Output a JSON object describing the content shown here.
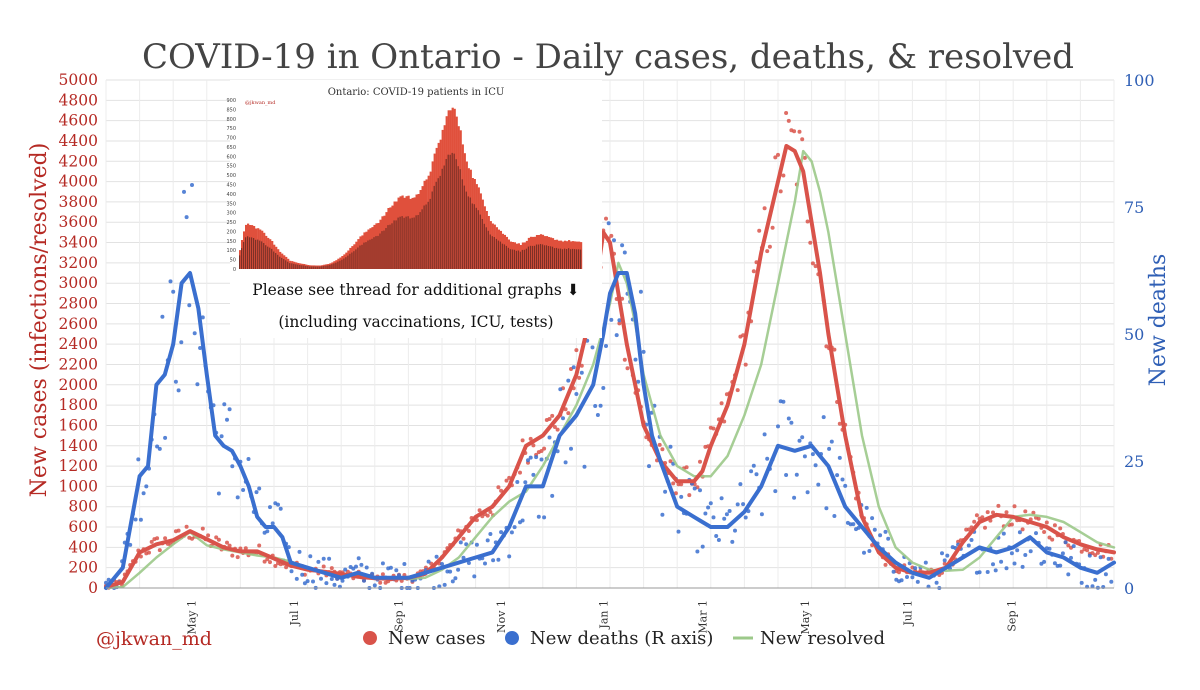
{
  "chart_data": {
    "type": "line",
    "title": "COVID-19 in Ontario - Daily cases, deaths, & resolved",
    "ylabel_left": "New cases (infections/resolved)",
    "ylabel_right": "New deaths",
    "ylim_left": [
      0,
      5000
    ],
    "ylim_right": [
      0,
      100
    ],
    "yticks_left": [
      0,
      200,
      400,
      600,
      800,
      1000,
      1200,
      1400,
      1600,
      1800,
      2000,
      2200,
      2400,
      2600,
      2800,
      3000,
      3200,
      3400,
      3600,
      3800,
      4000,
      4200,
      4400,
      4600,
      4800,
      5000
    ],
    "yticks_right": [
      0,
      25,
      50,
      75,
      100
    ],
    "xrange_days": [
      0,
      600
    ],
    "xticks": [
      {
        "label": "May 1",
        "day": 51
      },
      {
        "label": "Jul 1",
        "day": 112
      },
      {
        "label": "Sep 1",
        "day": 174
      },
      {
        "label": "Nov 1",
        "day": 235
      },
      {
        "label": "Jan 1",
        "day": 296
      },
      {
        "label": "Mar 1",
        "day": 355
      },
      {
        "label": "May 1",
        "day": 416
      },
      {
        "label": "Jul 1",
        "day": 477
      },
      {
        "label": "Sep 1",
        "day": 539
      }
    ],
    "grid": true,
    "legend_position": "bottom",
    "series": [
      {
        "name": "New cases",
        "axis": "left",
        "color": "#d9534a",
        "x": [
          0,
          10,
          20,
          30,
          40,
          50,
          60,
          70,
          80,
          90,
          100,
          110,
          120,
          130,
          140,
          150,
          160,
          170,
          180,
          190,
          200,
          210,
          220,
          230,
          240,
          250,
          260,
          270,
          280,
          290,
          296,
          300,
          305,
          310,
          315,
          320,
          330,
          340,
          350,
          355,
          360,
          370,
          380,
          390,
          400,
          405,
          410,
          415,
          420,
          425,
          430,
          440,
          450,
          460,
          470,
          480,
          490,
          500,
          510,
          520,
          530,
          540,
          550,
          560,
          570,
          580,
          590,
          600
        ],
        "values": [
          10,
          60,
          350,
          430,
          470,
          560,
          480,
          400,
          360,
          360,
          290,
          220,
          180,
          160,
          140,
          110,
          95,
          90,
          100,
          140,
          300,
          500,
          700,
          800,
          1000,
          1400,
          1500,
          1700,
          2100,
          2800,
          3500,
          3400,
          2900,
          2400,
          2000,
          1600,
          1250,
          1050,
          1050,
          1150,
          1400,
          1800,
          2400,
          3300,
          4000,
          4350,
          4300,
          4100,
          3600,
          3100,
          2500,
          1500,
          700,
          350,
          200,
          150,
          150,
          200,
          450,
          650,
          720,
          700,
          650,
          600,
          500,
          430,
          380,
          350
        ]
      },
      {
        "name": "New deaths (R axis)",
        "axis": "right",
        "color": "#3a6fcf",
        "x": [
          0,
          10,
          20,
          25,
          30,
          35,
          40,
          45,
          50,
          55,
          60,
          65,
          70,
          75,
          80,
          85,
          90,
          95,
          100,
          105,
          110,
          120,
          130,
          140,
          150,
          160,
          170,
          180,
          190,
          200,
          210,
          220,
          230,
          240,
          250,
          260,
          270,
          280,
          290,
          296,
          300,
          305,
          310,
          315,
          320,
          325,
          330,
          340,
          350,
          355,
          360,
          370,
          380,
          390,
          400,
          410,
          420,
          430,
          440,
          450,
          460,
          470,
          480,
          490,
          500,
          510,
          520,
          530,
          540,
          550,
          560,
          570,
          580,
          590,
          600
        ],
        "values": [
          0,
          4,
          22,
          24,
          40,
          42,
          48,
          60,
          62,
          55,
          42,
          30,
          28,
          27,
          24,
          20,
          14,
          12,
          12,
          10,
          5,
          4,
          3,
          2,
          3,
          2,
          2,
          2,
          3,
          4,
          5,
          6,
          7,
          12,
          20,
          20,
          30,
          34,
          40,
          50,
          58,
          62,
          62,
          54,
          40,
          30,
          25,
          16,
          14,
          13,
          12,
          12,
          15,
          20,
          28,
          27,
          28,
          24,
          16,
          12,
          8,
          5,
          3,
          2,
          4,
          6,
          8,
          7,
          8,
          10,
          7,
          6,
          4,
          3,
          5
        ]
      },
      {
        "name": "New resolved",
        "axis": "left",
        "color": "#9cc98a",
        "x": [
          0,
          10,
          20,
          30,
          40,
          50,
          60,
          70,
          80,
          90,
          100,
          110,
          120,
          130,
          140,
          150,
          160,
          170,
          180,
          190,
          200,
          210,
          220,
          230,
          240,
          250,
          260,
          270,
          280,
          290,
          300,
          305,
          310,
          315,
          320,
          330,
          340,
          350,
          360,
          370,
          380,
          390,
          400,
          410,
          415,
          420,
          425,
          430,
          440,
          450,
          460,
          470,
          480,
          490,
          500,
          510,
          520,
          530,
          540,
          550,
          560,
          570,
          580,
          590,
          600
        ],
        "values": [
          0,
          10,
          150,
          300,
          430,
          550,
          420,
          380,
          350,
          320,
          300,
          260,
          200,
          160,
          130,
          120,
          100,
          90,
          90,
          100,
          180,
          300,
          500,
          700,
          850,
          950,
          1200,
          1500,
          1800,
          2200,
          2800,
          3200,
          3000,
          2600,
          2100,
          1500,
          1200,
          1100,
          1100,
          1300,
          1700,
          2200,
          3000,
          3800,
          4300,
          4200,
          3900,
          3500,
          2500,
          1500,
          800,
          400,
          250,
          180,
          170,
          180,
          300,
          500,
          700,
          720,
          700,
          650,
          550,
          450,
          400
        ]
      }
    ],
    "legend": {
      "handle": "@jkwan_md",
      "entries": [
        {
          "label": "New cases",
          "color": "#d9534a"
        },
        {
          "label": "New deaths (R axis)",
          "color": "#3a6fcf"
        },
        {
          "label": "New resolved",
          "color": "#9cc98a"
        }
      ]
    },
    "inset": {
      "title": "Ontario: COVID-19 patients in ICU",
      "handle": "@jkwan_md",
      "ylim": [
        0,
        900
      ],
      "yticks": [
        0,
        50,
        100,
        150,
        200,
        250,
        300,
        350,
        400,
        450,
        500,
        550,
        600,
        650,
        700,
        750,
        800,
        850,
        900
      ],
      "x": [
        0,
        5,
        10,
        20,
        30,
        40,
        50,
        60,
        70,
        80,
        90,
        100,
        110,
        120,
        130,
        140,
        150,
        160,
        170,
        180,
        190,
        200,
        210,
        215,
        220,
        225,
        230,
        240,
        250,
        260,
        270,
        280,
        290,
        300,
        310,
        320,
        330,
        340
      ],
      "values": [
        100,
        230,
        240,
        210,
        160,
        90,
        45,
        30,
        20,
        18,
        30,
        60,
        110,
        170,
        220,
        260,
        330,
        390,
        380,
        410,
        530,
        700,
        870,
        830,
        720,
        600,
        520,
        400,
        260,
        200,
        150,
        130,
        170,
        180,
        165,
        150,
        150,
        140
      ],
      "note_line1": "Please see thread for additional graphs ⬇",
      "note_line2": "(including vaccinations, ICU, tests)"
    }
  }
}
